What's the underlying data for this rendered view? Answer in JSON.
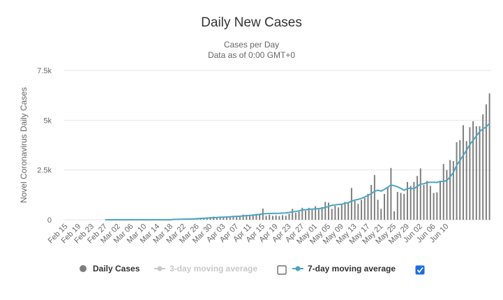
{
  "colors": {
    "bar": "#7e7e7e",
    "line": "#4aa6c0",
    "legend_dim": "#c8c8c8",
    "grid": "#e6e6e6",
    "checkbox_checked": "#1a6fe0"
  },
  "chart_data": {
    "type": "bar",
    "title": "Daily New Cases",
    "subtitle": [
      "Cases per Day",
      "Data as of 0:00 GMT+0"
    ],
    "ylabel": "Novel Coronavirus Daily Cases",
    "xlabel": "",
    "ylim": [
      0,
      7500
    ],
    "yticks": [
      0,
      2500,
      5000,
      7500
    ],
    "ytick_labels": [
      "0",
      "2.5k",
      "5k",
      "7.5k"
    ],
    "grid": true,
    "start_date": "Feb 15",
    "xtick_labels": [
      "Feb 15",
      "Feb 19",
      "Feb 23",
      "Feb 27",
      "Mar 02",
      "Mar 06",
      "Mar 10",
      "Mar 14",
      "Mar 18",
      "Mar 22",
      "Mar 26",
      "Mar 30",
      "Apr 03",
      "Apr 07",
      "Apr 11",
      "Apr 15",
      "Apr 19",
      "Apr 23",
      "Apr 27",
      "May 01",
      "May 05",
      "May 09",
      "May 13",
      "May 17",
      "May 21",
      "May 25",
      "May 29",
      "Jun 02",
      "Jun 06",
      "Jun 10"
    ],
    "series": [
      {
        "name": "Daily Cases",
        "values": [
          0,
          0,
          0,
          0,
          0,
          0,
          0,
          0,
          0,
          0,
          0,
          0,
          0,
          0,
          0,
          0,
          0,
          0,
          0,
          0,
          0,
          0,
          0,
          0,
          0,
          0,
          0,
          0,
          0,
          0,
          0,
          0,
          0,
          20,
          30,
          20,
          40,
          40,
          50,
          60,
          80,
          100,
          80,
          120,
          140,
          160,
          140,
          160,
          130,
          170,
          160,
          200,
          180,
          210,
          260,
          250,
          230,
          270,
          300,
          310,
          560,
          200,
          250,
          200,
          220,
          190,
          230,
          200,
          300,
          550,
          350,
          400,
          600,
          450,
          600,
          500,
          680,
          520,
          640,
          900,
          860,
          550,
          700,
          620,
          800,
          900,
          850,
          1600,
          950,
          800,
          1000,
          1100,
          1300,
          1750,
          2250,
          1000,
          550,
          1300,
          1650,
          2600,
          420,
          1400,
          1350,
          1300,
          1900,
          1700,
          1900,
          2200,
          2580,
          1750,
          1950,
          1700,
          1350,
          1380,
          1950,
          2800,
          2500,
          3000,
          2950,
          3900,
          4000,
          4750,
          3950,
          4650,
          4950,
          4700,
          4700,
          5300,
          5800,
          6350
        ]
      },
      {
        "name": "3-day moving average",
        "values": []
      },
      {
        "name": "7-day moving average",
        "values": [
          0,
          0,
          0,
          0,
          0,
          0,
          0,
          0,
          0,
          0,
          0,
          0,
          0,
          0,
          0,
          0,
          0,
          0,
          0,
          0,
          0,
          0,
          0,
          0,
          0,
          0,
          0,
          0,
          0,
          0,
          0,
          0,
          0,
          20,
          22,
          25,
          29,
          33,
          39,
          46,
          56,
          66,
          76,
          84,
          94,
          105,
          116,
          126,
          133,
          140,
          151,
          160,
          171,
          181,
          195,
          207,
          219,
          234,
          250,
          266,
          301,
          305,
          316,
          318,
          320,
          323,
          338,
          342,
          367,
          398,
          418,
          444,
          498,
          500,
          526,
          535,
          547,
          562,
          579,
          617,
          668,
          729,
          747,
          767,
          778,
          830,
          861,
          931,
          993,
          1020,
          1075,
          1144,
          1221,
          1307,
          1429,
          1484,
          1440,
          1525,
          1627,
          1749,
          1711,
          1657,
          1576,
          1482,
          1567,
          1587,
          1558,
          1680,
          1792,
          1810,
          1872,
          1882,
          1886,
          1876,
          1926,
          1932,
          1971,
          2151,
          2380,
          2734,
          2978,
          3237,
          3495,
          3771,
          3993,
          4211,
          4432,
          4564,
          4669,
          4840,
          4944,
          5214
        ]
      }
    ],
    "legend": {
      "placement": "bottom",
      "items": [
        {
          "label": "Daily Cases",
          "visible": true,
          "has_checkbox": false
        },
        {
          "label": "3-day moving average",
          "visible": false,
          "has_checkbox": true,
          "checked": false
        },
        {
          "label": "7-day moving average",
          "visible": true,
          "has_checkbox": true,
          "checked": true
        }
      ]
    }
  }
}
